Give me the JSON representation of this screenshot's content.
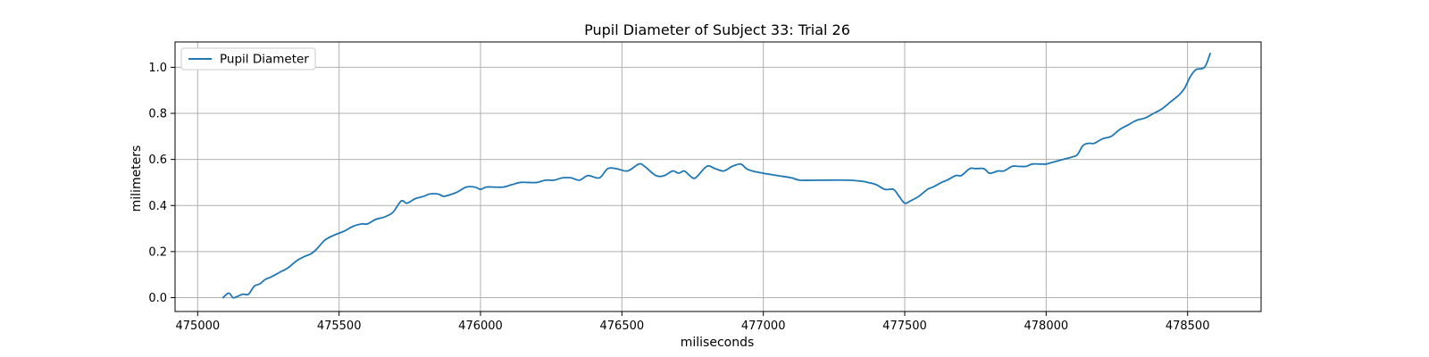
{
  "chart_data": {
    "type": "line",
    "title": "Pupil Diameter of Subject 33: Trial 26",
    "xlabel": "miliseconds",
    "ylabel": "milimeters",
    "xlim": [
      474920,
      478760
    ],
    "ylim": [
      -0.06,
      1.11
    ],
    "xticks": [
      475000,
      475500,
      476000,
      476500,
      477000,
      477500,
      478000,
      478500
    ],
    "yticks": [
      0.0,
      0.2,
      0.4,
      0.6,
      0.8,
      1.0
    ],
    "ytick_labels": [
      "0.0",
      "0.2",
      "0.4",
      "0.6",
      "0.8",
      "1.0"
    ],
    "grid": true,
    "legend_position": "upper-left",
    "series": [
      {
        "name": "Pupil Diameter",
        "color": "#1f77b4",
        "x": [
          475090,
          475110,
          475125,
          475140,
          475160,
          475180,
          475200,
          475220,
          475240,
          475260,
          475290,
          475320,
          475350,
          475380,
          475400,
          475420,
          475450,
          475480,
          475500,
          475520,
          475550,
          475580,
          475600,
          475630,
          475660,
          475690,
          475720,
          475740,
          475770,
          475800,
          475820,
          475850,
          475870,
          475900,
          475920,
          475950,
          475980,
          476000,
          476020,
          476050,
          476080,
          476110,
          476140,
          476170,
          476200,
          476230,
          476260,
          476290,
          476320,
          476350,
          476380,
          476420,
          476450,
          476480,
          476520,
          476560,
          476580,
          476620,
          476650,
          476680,
          476700,
          476720,
          476740,
          476760,
          476800,
          476830,
          476860,
          476890,
          476920,
          476940,
          476960,
          477000,
          477050,
          477100,
          477130,
          477200,
          477300,
          477350,
          477370,
          477400,
          477430,
          477460,
          477480,
          477500,
          477520,
          477550,
          477580,
          477600,
          477630,
          477650,
          477680,
          477700,
          477730,
          477750,
          477780,
          477800,
          477830,
          477850,
          477880,
          477900,
          477930,
          477950,
          477980,
          478000,
          478030,
          478060,
          478090,
          478110,
          478130,
          478150,
          478170,
          478200,
          478230,
          478260,
          478290,
          478320,
          478350,
          478380,
          478410,
          478440,
          478470,
          478490,
          478510,
          478530,
          478560,
          478580
        ],
        "y": [
          0.0,
          0.02,
          0.0,
          0.005,
          0.015,
          0.015,
          0.05,
          0.06,
          0.08,
          0.09,
          0.11,
          0.13,
          0.16,
          0.18,
          0.19,
          0.21,
          0.25,
          0.27,
          0.28,
          0.29,
          0.31,
          0.32,
          0.32,
          0.34,
          0.35,
          0.37,
          0.42,
          0.41,
          0.43,
          0.44,
          0.45,
          0.45,
          0.44,
          0.45,
          0.46,
          0.48,
          0.48,
          0.47,
          0.48,
          0.48,
          0.48,
          0.49,
          0.5,
          0.5,
          0.5,
          0.51,
          0.51,
          0.52,
          0.52,
          0.51,
          0.53,
          0.52,
          0.56,
          0.56,
          0.55,
          0.58,
          0.57,
          0.53,
          0.53,
          0.55,
          0.54,
          0.55,
          0.53,
          0.52,
          0.57,
          0.56,
          0.55,
          0.57,
          0.58,
          0.56,
          0.55,
          0.54,
          0.53,
          0.52,
          0.51,
          0.51,
          0.51,
          0.505,
          0.5,
          0.49,
          0.47,
          0.47,
          0.44,
          0.41,
          0.42,
          0.44,
          0.47,
          0.48,
          0.5,
          0.51,
          0.53,
          0.53,
          0.56,
          0.56,
          0.56,
          0.54,
          0.55,
          0.55,
          0.57,
          0.57,
          0.57,
          0.58,
          0.58,
          0.58,
          0.59,
          0.6,
          0.61,
          0.62,
          0.66,
          0.67,
          0.67,
          0.69,
          0.7,
          0.73,
          0.75,
          0.77,
          0.78,
          0.8,
          0.82,
          0.85,
          0.88,
          0.91,
          0.96,
          0.99,
          1.0,
          1.06
        ]
      }
    ]
  }
}
